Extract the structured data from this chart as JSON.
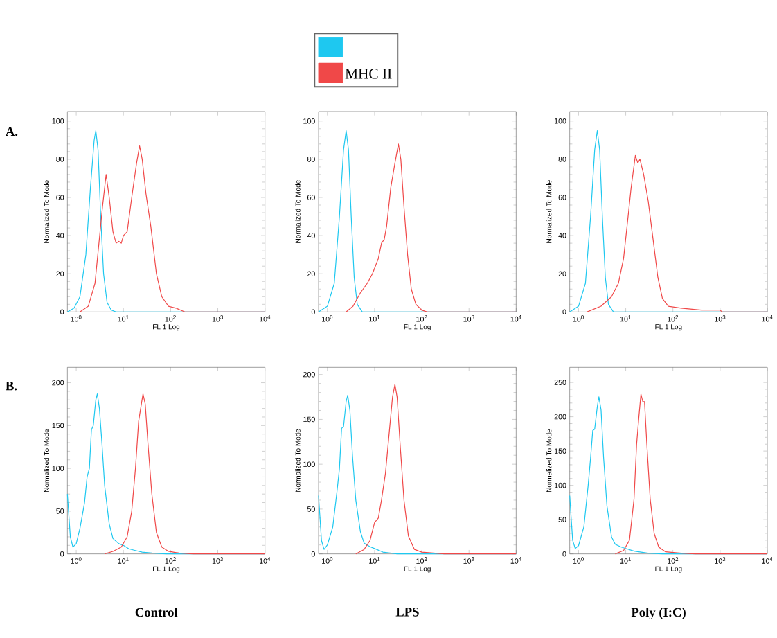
{
  "chart_data": [
    {
      "type": "line",
      "log": "x",
      "xlabel": "FL 1 Log",
      "ylabel": "Normalized To Mode",
      "xlim": [
        0.65,
        10000
      ],
      "ylim": [
        0,
        105
      ],
      "xticks": [
        {
          "value": 1,
          "label": "10$^{0}$"
        },
        {
          "value": 10,
          "label": "10$^{1}$"
        },
        {
          "value": 100,
          "label": "10$^{2}$"
        },
        {
          "value": 1000,
          "label": "10$^{3}$"
        },
        {
          "value": 10000,
          "label": "10$^{4}$"
        }
      ],
      "yticks": [
        0,
        20,
        40,
        60,
        80,
        100
      ],
      "annotations": [
        "A."
      ],
      "series": [
        {
          "color": "#1ec8f0",
          "x": [
            0.65,
            0.9,
            1.2,
            1.6,
            2.0,
            2.4,
            2.6,
            2.9,
            3.3,
            3.8,
            4.5,
            5.5,
            7,
            10000
          ],
          "values": [
            0,
            2,
            8,
            30,
            65,
            90,
            95,
            85,
            50,
            20,
            5,
            1,
            0,
            0
          ]
        },
        {
          "color": "#f04848",
          "x": [
            1.2,
            1.8,
            2.5,
            3.0,
            3.6,
            4.3,
            5,
            6,
            7,
            8,
            9,
            10,
            12,
            15,
            19,
            22,
            25,
            30,
            38,
            50,
            65,
            90,
            130,
            200,
            10000
          ],
          "values": [
            0,
            3,
            15,
            35,
            55,
            72,
            60,
            42,
            36,
            37,
            36,
            40,
            42,
            60,
            78,
            87,
            80,
            62,
            45,
            20,
            8,
            3,
            2,
            0,
            0
          ]
        }
      ]
    },
    {
      "type": "line",
      "log": "x",
      "xlabel": "FL 1 Log",
      "ylabel": "Normalized To Mode",
      "xlim": [
        0.65,
        10000
      ],
      "ylim": [
        0,
        105
      ],
      "legend": "top",
      "xticks": [
        {
          "value": 1,
          "label": "10$^{0}$"
        },
        {
          "value": 10,
          "label": "10$^{1}$"
        },
        {
          "value": 100,
          "label": "10$^{2}$"
        },
        {
          "value": 1000,
          "label": "10$^{3}$"
        },
        {
          "value": 10000,
          "label": "10$^{4}$"
        }
      ],
      "yticks": [
        0,
        20,
        40,
        60,
        80,
        100
      ],
      "series": [
        {
          "color": "#1ec8f0",
          "x": [
            0.65,
            1.0,
            1.4,
            1.8,
            2.2,
            2.5,
            2.8,
            3.2,
            3.7,
            4.3,
            5.5,
            10000
          ],
          "values": [
            0,
            3,
            15,
            50,
            85,
            95,
            85,
            50,
            18,
            4,
            0,
            0
          ]
        },
        {
          "name": "MHC II",
          "color": "#f04848",
          "x": [
            2.5,
            3.5,
            5,
            7,
            9,
            12,
            14,
            16,
            18,
            22,
            27,
            32,
            36,
            42,
            50,
            60,
            75,
            100,
            130,
            10000
          ],
          "values": [
            0,
            3,
            10,
            15,
            20,
            28,
            36,
            38,
            45,
            65,
            78,
            88,
            80,
            55,
            30,
            12,
            4,
            1,
            0,
            0
          ]
        }
      ]
    },
    {
      "type": "line",
      "log": "x",
      "xlabel": "FL 1 Log",
      "ylabel": "Normalized To Mode",
      "xlim": [
        0.65,
        10000
      ],
      "ylim": [
        0,
        105
      ],
      "xticks": [
        {
          "value": 1,
          "label": "10$^{0}$"
        },
        {
          "value": 10,
          "label": "10$^{1}$"
        },
        {
          "value": 100,
          "label": "10$^{2}$"
        },
        {
          "value": 1000,
          "label": "10$^{3}$"
        },
        {
          "value": 10000,
          "label": "10$^{4}$"
        }
      ],
      "yticks": [
        0,
        20,
        40,
        60,
        80,
        100
      ],
      "series": [
        {
          "color": "#1ec8f0",
          "x": [
            0.65,
            1.0,
            1.4,
            1.8,
            2.2,
            2.5,
            2.8,
            3.2,
            3.7,
            4.3,
            5.5,
            10000
          ],
          "values": [
            0,
            3,
            15,
            50,
            85,
            95,
            85,
            50,
            18,
            4,
            0,
            0
          ]
        },
        {
          "color": "#f04848",
          "x": [
            1.5,
            3,
            5,
            7,
            9,
            11,
            13,
            16,
            18,
            20,
            24,
            30,
            38,
            48,
            60,
            80,
            150,
            400,
            1000,
            1100,
            10000
          ],
          "values": [
            0,
            3,
            8,
            15,
            28,
            48,
            65,
            82,
            78,
            80,
            72,
            58,
            38,
            18,
            7,
            3,
            2,
            1,
            1,
            0,
            0
          ]
        }
      ]
    },
    {
      "type": "line",
      "log": "x",
      "xlabel": "FL 1 Log",
      "ylabel": "Normalized To Mode",
      "xlim": [
        0.65,
        10000
      ],
      "ylim": [
        0,
        218
      ],
      "xticks": [
        {
          "value": 1,
          "label": "10$^{0}$"
        },
        {
          "value": 10,
          "label": "10$^{1}$"
        },
        {
          "value": 100,
          "label": "10$^{2}$"
        },
        {
          "value": 1000,
          "label": "10$^{3}$"
        },
        {
          "value": 10000,
          "label": "10$^{4}$"
        }
      ],
      "yticks": [
        0,
        50,
        100,
        150,
        200
      ],
      "annotations": [
        "B.",
        "Control"
      ],
      "series": [
        {
          "color": "#1ec8f0",
          "x": [
            0.65,
            0.75,
            0.85,
            1.0,
            1.2,
            1.5,
            1.7,
            1.9,
            2.1,
            2.3,
            2.6,
            2.8,
            3.1,
            3.5,
            4,
            5,
            6,
            8,
            10,
            13,
            18,
            25,
            40,
            80,
            10000
          ],
          "values": [
            70,
            20,
            8,
            12,
            30,
            60,
            90,
            100,
            145,
            150,
            180,
            187,
            170,
            130,
            80,
            35,
            18,
            12,
            10,
            6,
            4,
            2,
            1,
            0,
            0
          ]
        },
        {
          "color": "#f04848",
          "x": [
            4,
            6,
            9,
            12,
            15,
            18,
            21,
            24,
            26,
            29,
            33,
            40,
            50,
            65,
            90,
            150,
            300,
            10000
          ],
          "values": [
            0,
            3,
            8,
            20,
            50,
            100,
            155,
            175,
            187,
            175,
            130,
            70,
            25,
            8,
            3,
            1,
            0,
            0
          ]
        }
      ]
    },
    {
      "type": "line",
      "log": "x",
      "xlabel": "FL 1 Log",
      "ylabel": "Normalized To Mode",
      "xlim": [
        0.65,
        10000
      ],
      "ylim": [
        0,
        208
      ],
      "xticks": [
        {
          "value": 1,
          "label": "10$^{0}$"
        },
        {
          "value": 10,
          "label": "10$^{1}$"
        },
        {
          "value": 100,
          "label": "10$^{2}$"
        },
        {
          "value": 1000,
          "label": "10$^{3}$"
        },
        {
          "value": 10000,
          "label": "10$^{4}$"
        }
      ],
      "yticks": [
        0,
        50,
        100,
        150,
        200
      ],
      "annotations": [
        "LPS"
      ],
      "series": [
        {
          "color": "#1ec8f0",
          "x": [
            0.65,
            0.75,
            0.85,
            1.0,
            1.3,
            1.6,
            1.8,
            2.0,
            2.2,
            2.5,
            2.7,
            3.0,
            3.4,
            4,
            5,
            6,
            8,
            10,
            15,
            30,
            10000
          ],
          "values": [
            65,
            15,
            5,
            10,
            30,
            70,
            95,
            140,
            142,
            170,
            177,
            160,
            110,
            60,
            25,
            12,
            8,
            6,
            2,
            0,
            0
          ]
        },
        {
          "color": "#f04848",
          "x": [
            4,
            6,
            8,
            10,
            12,
            14,
            17,
            20,
            24,
            27,
            30,
            35,
            42,
            52,
            70,
            100,
            300,
            10000
          ],
          "values": [
            0,
            5,
            15,
            35,
            40,
            60,
            90,
            130,
            175,
            189,
            175,
            120,
            60,
            20,
            5,
            2,
            0,
            0
          ]
        }
      ]
    },
    {
      "type": "line",
      "log": "x",
      "xlabel": "FL 1 Log",
      "ylabel": "Normalized To Mode",
      "xlim": [
        0.65,
        10000
      ],
      "ylim": [
        0,
        272
      ],
      "xticks": [
        {
          "value": 1,
          "label": "10$^{0}$"
        },
        {
          "value": 10,
          "label": "10$^{1}$"
        },
        {
          "value": 100,
          "label": "10$^{2}$"
        },
        {
          "value": 1000,
          "label": "10$^{3}$"
        },
        {
          "value": 10000,
          "label": "10$^{4}$"
        }
      ],
      "yticks": [
        0,
        50,
        100,
        150,
        200,
        250
      ],
      "annotations": [
        "Poly (I:C)"
      ],
      "series": [
        {
          "color": "#1ec8f0",
          "x": [
            0.65,
            0.75,
            0.85,
            1.0,
            1.3,
            1.6,
            1.8,
            2.0,
            2.2,
            2.5,
            2.7,
            3.0,
            3.4,
            4,
            5,
            6,
            8,
            10,
            15,
            30,
            60,
            10000
          ],
          "values": [
            85,
            20,
            8,
            12,
            40,
            100,
            140,
            180,
            182,
            215,
            229,
            210,
            140,
            70,
            25,
            14,
            10,
            8,
            4,
            1,
            0,
            0
          ]
        },
        {
          "color": "#f04848",
          "x": [
            6,
            9,
            12,
            15,
            17,
            19,
            21,
            23,
            25,
            28,
            33,
            40,
            50,
            70,
            150,
            300,
            10000
          ],
          "values": [
            0,
            5,
            20,
            80,
            160,
            200,
            233,
            222,
            222,
            160,
            80,
            30,
            10,
            3,
            1,
            0,
            0
          ]
        }
      ]
    }
  ]
}
